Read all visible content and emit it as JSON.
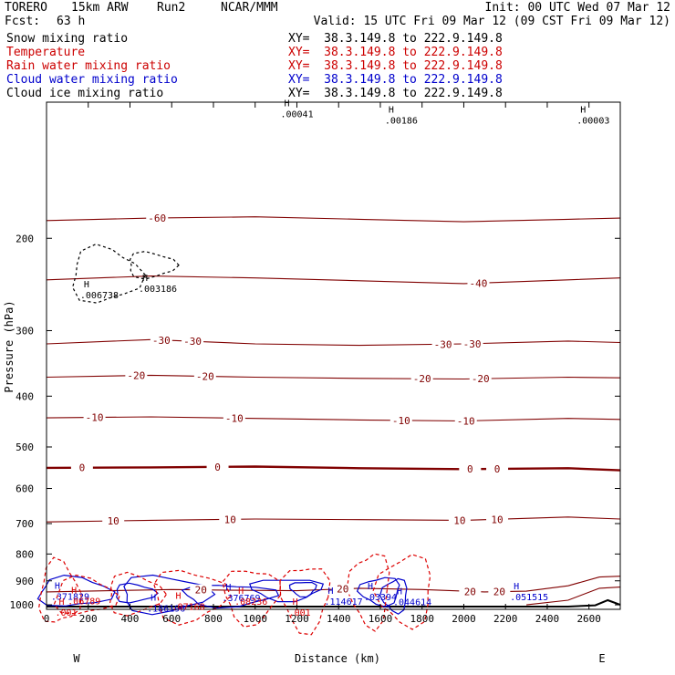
{
  "header": {
    "model": "TORERO",
    "resolution": "15km ARW",
    "run": "Run2",
    "center": "NCAR/MMM",
    "init": "Init: 00 UTC Wed 07 Mar 12",
    "fcst_label": "Fcst:",
    "fcst_value": "63 h",
    "valid": "Valid: 15 UTC Fri 09 Mar 12 (09 CST Fri 09 Mar 12)"
  },
  "fields": [
    {
      "name": "Snow mixing ratio",
      "xy": "XY=  38.3.149.8 to 222.9.149.8",
      "color": "#000000"
    },
    {
      "name": "Temperature",
      "xy": "XY=  38.3.149.8 to 222.9.149.8",
      "color": "#cc0000"
    },
    {
      "name": "Rain water mixing ratio",
      "xy": "XY=  38.3.149.8 to 222.9.149.8",
      "color": "#cc0000"
    },
    {
      "name": "Cloud water mixing ratio",
      "xy": "XY=  38.3.149.8 to 222.9.149.8",
      "color": "#0000cc"
    },
    {
      "name": "Cloud ice mixing ratio",
      "xy": "XY=  38.3.149.8 to 222.9.149.8",
      "color": "#000000"
    }
  ],
  "colors": {
    "temperature": "#800000",
    "rain": "#dd0000",
    "cloud_water": "#0000cc",
    "ice": "#000000",
    "frame": "#000000"
  },
  "chart_data": {
    "type": "line",
    "xlabel": "Distance (km)",
    "ylabel": "Pressure (hPa)",
    "xlim": [
      0,
      2750
    ],
    "ylim": [
      1020,
      110
    ],
    "y_scale": "log",
    "x_ticks": [
      "0",
      "200",
      "400",
      "600",
      "800",
      "1000",
      "1200",
      "1400",
      "1600",
      "1800",
      "2000",
      "2200",
      "2400",
      "2600"
    ],
    "y_ticks": [
      "200",
      "300",
      "400",
      "500",
      "600",
      "700",
      "800",
      "900",
      "1000"
    ],
    "west_label": "W",
    "east_label": "E",
    "temperature_isotherms": [
      {
        "level": -60,
        "labels": [
          {
            "x": 530,
            "text": "-60"
          }
        ],
        "points": [
          [
            0,
            185
          ],
          [
            500,
            183
          ],
          [
            1000,
            182
          ],
          [
            1500,
            184
          ],
          [
            2000,
            186
          ],
          [
            2500,
            184
          ],
          [
            2750,
            183
          ]
        ]
      },
      {
        "level": -40,
        "labels": [
          {
            "x": 2070,
            "text": "-40"
          }
        ],
        "points": [
          [
            0,
            240
          ],
          [
            500,
            236
          ],
          [
            1000,
            238
          ],
          [
            1500,
            241
          ],
          [
            2000,
            244
          ],
          [
            2500,
            240
          ],
          [
            2750,
            238
          ]
        ]
      },
      {
        "level": -30,
        "labels": [
          {
            "x": 550,
            "text": "-30"
          },
          {
            "x": 700,
            "text": "-30"
          },
          {
            "x": 1900,
            "text": "-30"
          },
          {
            "x": 2040,
            "text": "-30"
          }
        ],
        "points": [
          [
            0,
            318
          ],
          [
            500,
            312
          ],
          [
            1000,
            318
          ],
          [
            1500,
            320
          ],
          [
            2000,
            318
          ],
          [
            2500,
            314
          ],
          [
            2750,
            316
          ]
        ]
      },
      {
        "level": -20,
        "labels": [
          {
            "x": 430,
            "text": "-20"
          },
          {
            "x": 760,
            "text": "-20"
          },
          {
            "x": 1800,
            "text": "-20"
          },
          {
            "x": 2080,
            "text": "-20"
          }
        ],
        "points": [
          [
            0,
            368
          ],
          [
            500,
            365
          ],
          [
            1000,
            368
          ],
          [
            1500,
            370
          ],
          [
            2000,
            371
          ],
          [
            2500,
            368
          ],
          [
            2750,
            369
          ]
        ]
      },
      {
        "level": -10,
        "labels": [
          {
            "x": 230,
            "text": "-10"
          },
          {
            "x": 900,
            "text": "-10"
          },
          {
            "x": 1700,
            "text": "-10"
          },
          {
            "x": 2010,
            "text": "-10"
          }
        ],
        "points": [
          [
            0,
            440
          ],
          [
            500,
            438
          ],
          [
            1000,
            441
          ],
          [
            1500,
            444
          ],
          [
            2000,
            446
          ],
          [
            2500,
            441
          ],
          [
            2750,
            443
          ]
        ]
      },
      {
        "level": 0,
        "labels": [
          {
            "x": 170,
            "text": "0"
          },
          {
            "x": 820,
            "text": "0"
          },
          {
            "x": 2030,
            "text": "0"
          },
          {
            "x": 2160,
            "text": "0"
          }
        ],
        "points": [
          [
            0,
            548
          ],
          [
            500,
            547
          ],
          [
            1000,
            545
          ],
          [
            1500,
            549
          ],
          [
            2000,
            551
          ],
          [
            2500,
            549
          ],
          [
            2750,
            554
          ]
        ]
      },
      {
        "level": 10,
        "labels": [
          {
            "x": 320,
            "text": "10"
          },
          {
            "x": 880,
            "text": "10"
          },
          {
            "x": 1980,
            "text": "10"
          },
          {
            "x": 2160,
            "text": "10"
          }
        ],
        "points": [
          [
            0,
            695
          ],
          [
            500,
            690
          ],
          [
            1000,
            686
          ],
          [
            1500,
            688
          ],
          [
            2000,
            690
          ],
          [
            2500,
            680
          ],
          [
            2750,
            686
          ]
        ]
      },
      {
        "level": 20,
        "labels": [
          {
            "x": 740,
            "text": "20"
          },
          {
            "x": 1420,
            "text": "20"
          },
          {
            "x": 2030,
            "text": "20"
          },
          {
            "x": 2170,
            "text": "20"
          }
        ],
        "points": [
          [
            0,
            945
          ],
          [
            300,
            940
          ],
          [
            600,
            935
          ],
          [
            900,
            938
          ],
          [
            1200,
            940
          ],
          [
            1500,
            930
          ],
          [
            1800,
            935
          ],
          [
            2100,
            945
          ],
          [
            2300,
            942
          ],
          [
            2500,
            920
          ],
          [
            2650,
            885
          ],
          [
            2750,
            882
          ]
        ]
      },
      {
        "level": 30,
        "labels": [],
        "points": [
          [
            2300,
            1000
          ],
          [
            2500,
            980
          ],
          [
            2650,
            930
          ],
          [
            2750,
            925
          ]
        ]
      }
    ],
    "snow_mixing_ratio_maxima": [
      {
        "x": 240,
        "y": 250,
        "text": ".006738"
      },
      {
        "x": 520,
        "y": 243,
        "text": ".003186"
      }
    ],
    "cloud_ice_mixing_ratio_maxima": [
      {
        "x": 1200,
        "y": 113,
        "text": ".00041"
      },
      {
        "x": 1700,
        "y": 116,
        "text": ".00186"
      },
      {
        "x": 2620,
        "y": 116,
        "text": ".00003"
      }
    ],
    "cloud_water_mixing_ratio_maxima": [
      {
        "x": 100,
        "y": 940,
        "text": ".371829"
      },
      {
        "x": 560,
        "y": 990,
        "text": ".186196"
      },
      {
        "x": 920,
        "y": 945,
        "text": ".376769"
      },
      {
        "x": 1410,
        "y": 960,
        "text": ".114617"
      },
      {
        "x": 1600,
        "y": 942,
        "text": ".03394"
      },
      {
        "x": 1740,
        "y": 962,
        "text": ".044614"
      },
      {
        "x": 2300,
        "y": 942,
        "text": ".051515"
      }
    ],
    "rain_water_mixing_ratio_maxima": [
      {
        "x": 180,
        "y": 958,
        "text": ".06789"
      },
      {
        "x": 680,
        "y": 982,
        "text": ".07168"
      },
      {
        "x": 980,
        "y": 960,
        "text": ".08236"
      },
      {
        "x": 120,
        "y": 1008,
        "text": ".001"
      },
      {
        "x": 1240,
        "y": 1008,
        "text": ".001"
      }
    ],
    "terrain": [
      [
        0,
        1008
      ],
      [
        2500,
        1008
      ],
      [
        2630,
        1002
      ],
      [
        2690,
        980
      ],
      [
        2720,
        990
      ],
      [
        2750,
        1000
      ]
    ]
  }
}
